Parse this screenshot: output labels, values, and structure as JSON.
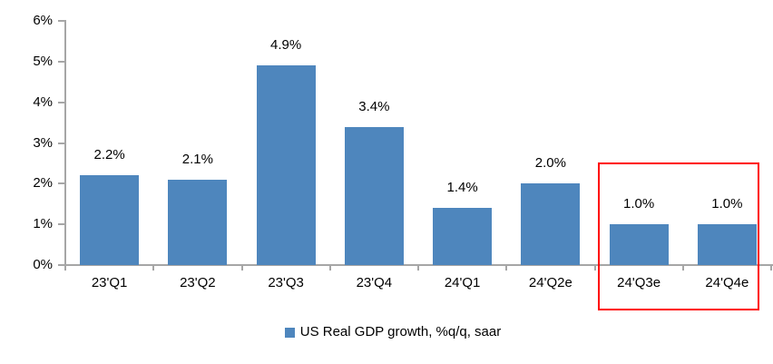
{
  "chart_data": {
    "type": "bar",
    "title": "",
    "xlabel": "",
    "ylabel": "",
    "categories": [
      "23'Q1",
      "23'Q2",
      "23'Q3",
      "23'Q4",
      "24'Q1",
      "24'Q2e",
      "24'Q3e",
      "24'Q4e"
    ],
    "values": [
      2.2,
      2.1,
      4.9,
      3.4,
      1.4,
      2.0,
      1.0,
      1.0
    ],
    "value_labels": [
      "2.2%",
      "2.1%",
      "4.9%",
      "3.4%",
      "1.4%",
      "2.0%",
      "1.0%",
      "1.0%"
    ],
    "ylim": [
      0,
      6
    ],
    "y_ticks": [
      {
        "value": 0,
        "label": "0%"
      },
      {
        "value": 1,
        "label": "1%"
      },
      {
        "value": 2,
        "label": "2%"
      },
      {
        "value": 3,
        "label": "3%"
      },
      {
        "value": 4,
        "label": "4%"
      },
      {
        "value": 5,
        "label": "5%"
      },
      {
        "value": 6,
        "label": "6%"
      }
    ],
    "grid": "off",
    "legend": "US Real GDP growth, %q/q, saar",
    "legend_position": "bottom-center",
    "bar_color": "#4E86BD",
    "axis_color": "#A6A6A6",
    "highlight": {
      "type": "box",
      "color": "#FF0000",
      "start_index": 6,
      "end_index": 7,
      "categories": [
        "24'Q3e",
        "24'Q4e"
      ]
    }
  }
}
